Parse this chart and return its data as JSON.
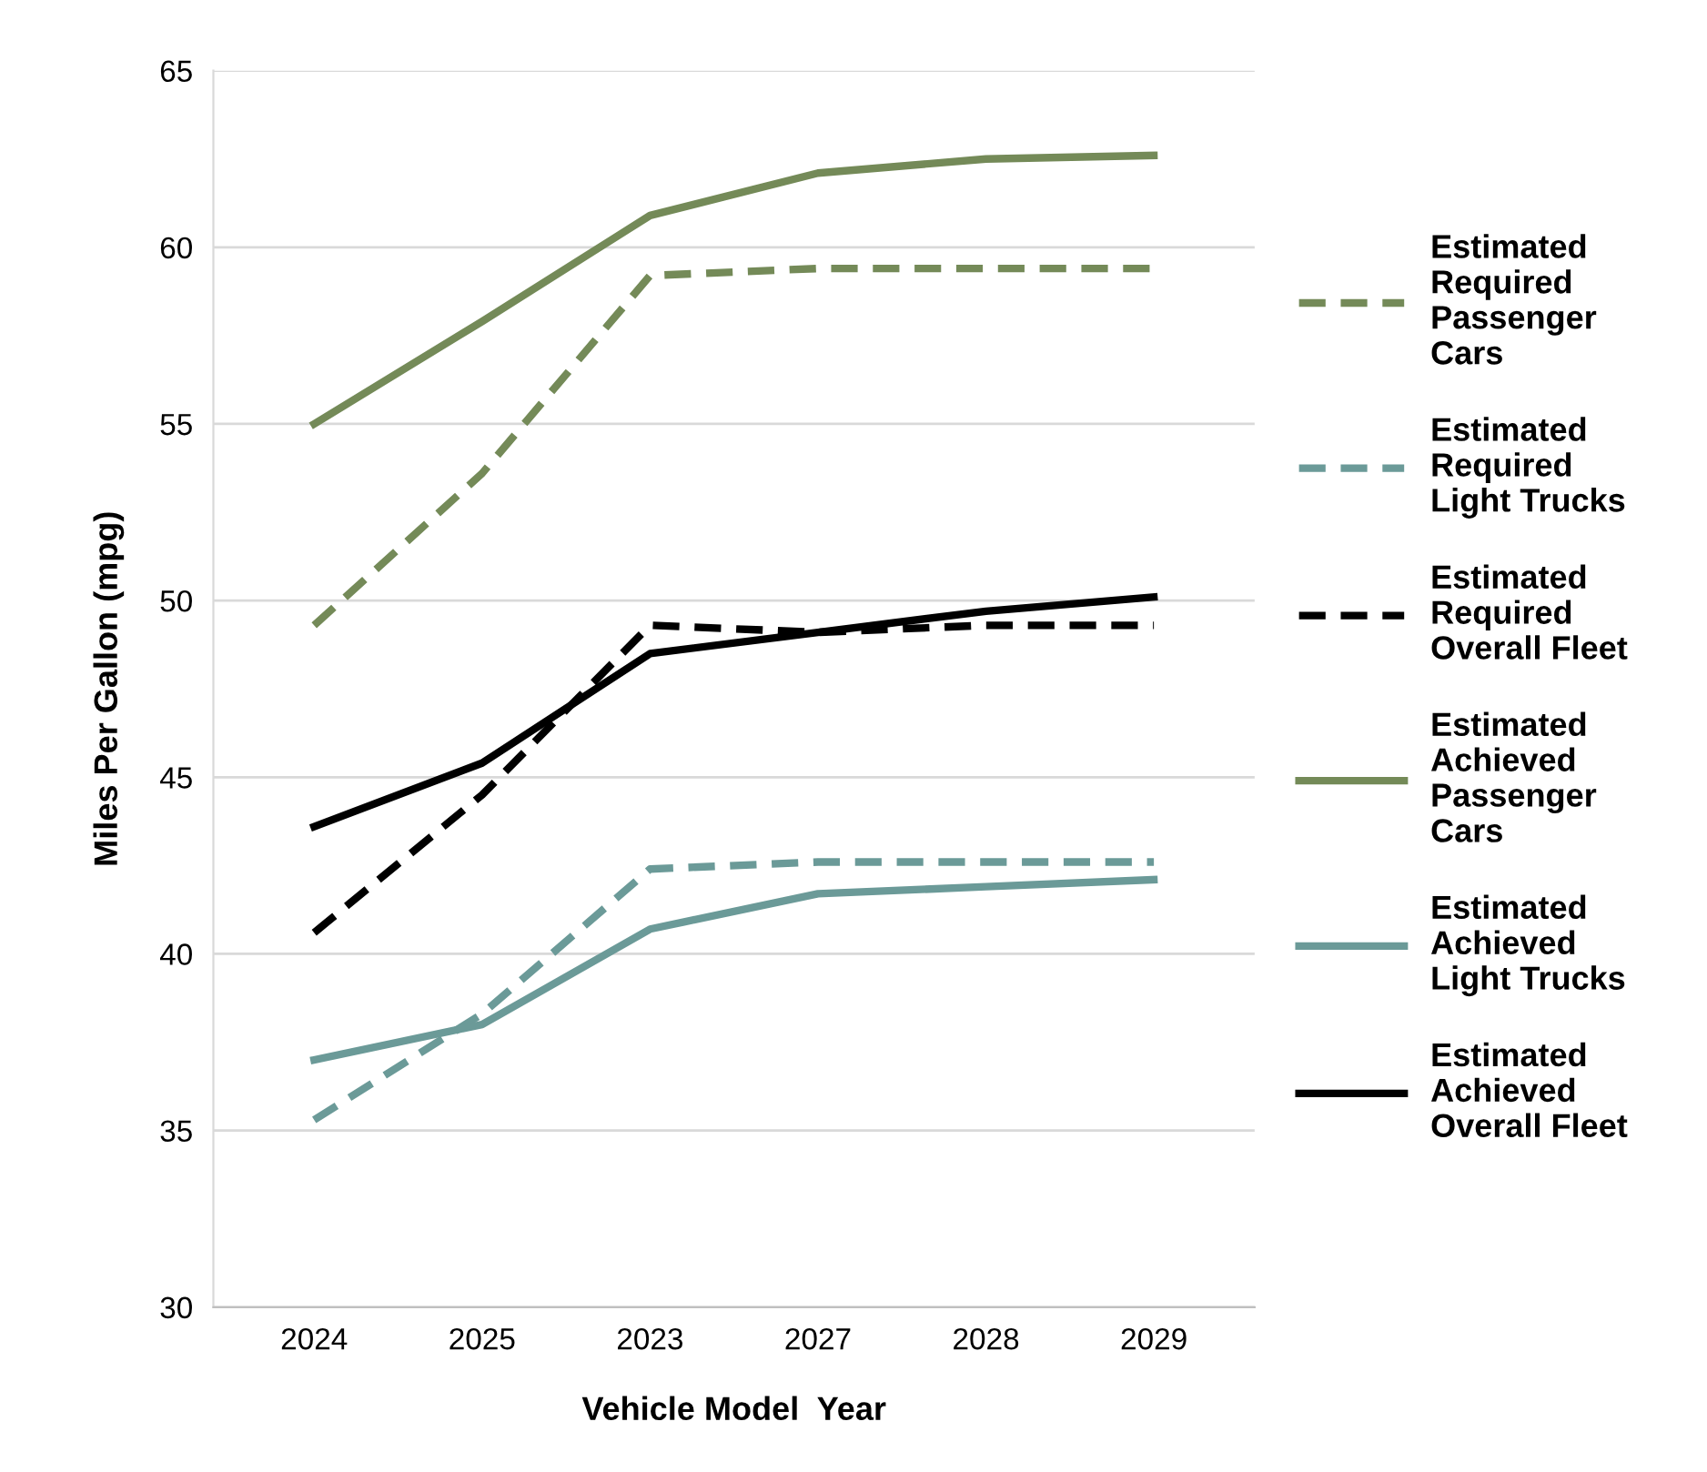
{
  "chart_data": {
    "type": "line",
    "xlabel": "Vehicle Model  Year",
    "ylabel": "Miles Per Gallon (mpg)",
    "categories": [
      "2024",
      "2025",
      "2023",
      "2027",
      "2028",
      "2029"
    ],
    "ylim": [
      30,
      65
    ],
    "yticks": [
      30,
      35,
      40,
      45,
      50,
      55,
      60,
      65
    ],
    "grid": "y",
    "legend": "right",
    "series": [
      {
        "name": "Estimated\nRequired\nPassenger\nCars",
        "color": "#748a58",
        "line_style": "dashed",
        "values": [
          49.3,
          53.6,
          59.2,
          59.4,
          59.4,
          59.4
        ]
      },
      {
        "name": "Estimated\nRequired\nLight Trucks",
        "color": "#6b9a98",
        "line_style": "dashed",
        "values": [
          35.3,
          38.3,
          42.4,
          42.6,
          42.6,
          42.6
        ]
      },
      {
        "name": "Estimated\nRequired\nOverall Fleet",
        "color": "#000000",
        "line_style": "dashed",
        "values": [
          40.6,
          44.5,
          49.3,
          49.1,
          49.3,
          49.3
        ]
      },
      {
        "name": "Estimated\nAchieved\nPassenger\nCars",
        "color": "#748a58",
        "line_style": "solid",
        "values": [
          55.0,
          57.9,
          60.9,
          62.1,
          62.5,
          62.6
        ]
      },
      {
        "name": "Estimated\nAchieved\nLight Trucks",
        "color": "#6b9a98",
        "line_style": "solid",
        "values": [
          37.0,
          38.0,
          40.7,
          41.7,
          41.9,
          42.1
        ]
      },
      {
        "name": "Estimated\nAchieved\nOverall Fleet",
        "color": "#000000",
        "line_style": "solid",
        "values": [
          43.6,
          45.4,
          48.5,
          49.1,
          49.7,
          50.1
        ]
      }
    ]
  }
}
